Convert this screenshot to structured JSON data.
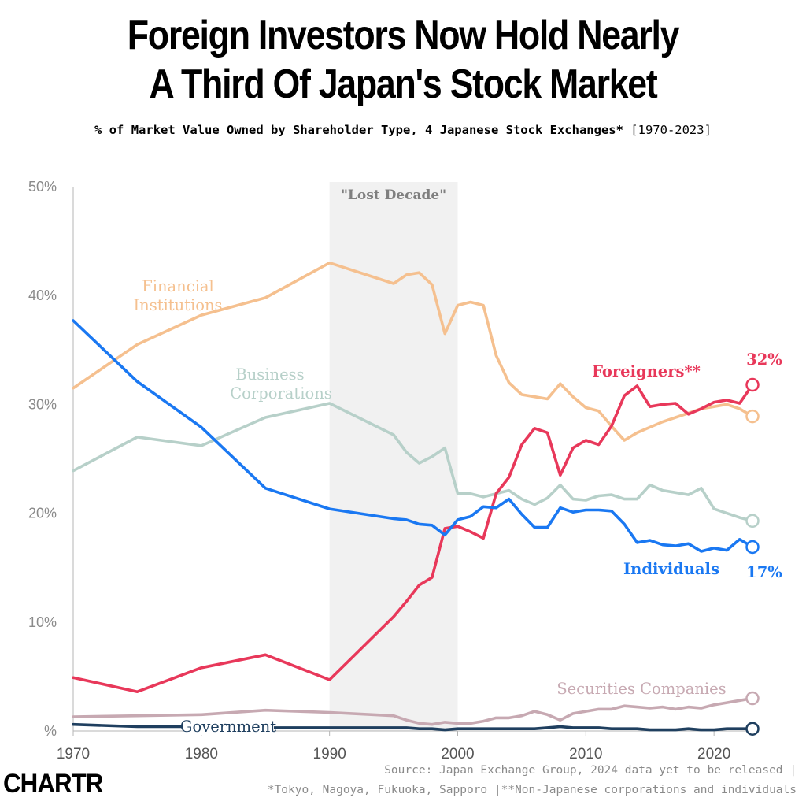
{
  "header": {
    "title_line1": "Foreign Investors Now Hold Nearly",
    "title_line2": "A Third Of Japan's Stock Market",
    "subtitle": "% of Market Value Owned by Shareholder Type, 4 Japanese Stock Exchanges*",
    "subtitle_range": "[1970-2023]"
  },
  "footer": {
    "source_line1": "Source: Japan Exchange Group, 2024 data yet to be released |",
    "source_line2": "*Tokyo, Nagoya, Fukuoka, Sapporo |**Non-Japanese corporations and individuals",
    "logo": "CHARTR"
  },
  "chart_data": {
    "type": "line",
    "xlim": [
      1970,
      2023
    ],
    "ylim": [
      0,
      50
    ],
    "x_ticks": [
      1970,
      1980,
      1990,
      2000,
      2010,
      2020
    ],
    "x_tick_labels": [
      "1970",
      "1980",
      "1990",
      "2000",
      "2010",
      "2020"
    ],
    "y_ticks": [
      0,
      10,
      20,
      30,
      40,
      50
    ],
    "y_tick_labels": [
      "%",
      "10%",
      "20%",
      "30%",
      "40%",
      "50%"
    ],
    "grid": false,
    "shaded_region": {
      "label": "\"Lost Decade\"",
      "x_start": 1990,
      "x_end": 2000,
      "color": "#f1f1f1"
    },
    "series": [
      {
        "name": "Financial Institutions",
        "label_line1": "Financial",
        "label_line2": "Institutions",
        "color": "#f5c08f",
        "x": [
          1970,
          1975,
          1980,
          1985,
          1990,
          1995,
          1996,
          1997,
          1998,
          1999,
          2000,
          2001,
          2002,
          2003,
          2004,
          2005,
          2006,
          2007,
          2008,
          2009,
          2010,
          2011,
          2012,
          2013,
          2014,
          2015,
          2016,
          2017,
          2018,
          2019,
          2020,
          2021,
          2022,
          2023
        ],
        "values": [
          31.5,
          35.5,
          38.2,
          39.8,
          43.0,
          41.1,
          41.9,
          42.1,
          41.0,
          36.5,
          39.1,
          39.4,
          39.1,
          34.5,
          32.0,
          30.9,
          30.7,
          30.5,
          31.9,
          30.7,
          29.7,
          29.4,
          28.0,
          26.7,
          27.4,
          27.9,
          28.4,
          28.8,
          29.2,
          29.6,
          29.8,
          30.0,
          29.6,
          28.9
        ]
      },
      {
        "name": "Business Corporations",
        "label_line1": "Business",
        "label_line2": "Corporations",
        "color": "#b7d0c9",
        "x": [
          1970,
          1975,
          1980,
          1985,
          1990,
          1995,
          1996,
          1997,
          1998,
          1999,
          2000,
          2001,
          2002,
          2003,
          2004,
          2005,
          2006,
          2007,
          2008,
          2009,
          2010,
          2011,
          2012,
          2013,
          2014,
          2015,
          2016,
          2017,
          2018,
          2019,
          2020,
          2021,
          2022,
          2023
        ],
        "values": [
          23.9,
          27.0,
          26.2,
          28.8,
          30.1,
          27.2,
          25.6,
          24.6,
          25.2,
          26.0,
          21.8,
          21.8,
          21.5,
          21.8,
          22.1,
          21.3,
          20.8,
          21.4,
          22.6,
          21.3,
          21.2,
          21.6,
          21.7,
          21.3,
          21.3,
          22.6,
          22.1,
          21.9,
          21.7,
          22.3,
          20.4,
          20.0,
          19.6,
          19.3
        ]
      },
      {
        "name": "Foreigners**",
        "label_line1": "Foreigners**",
        "label_line2": "",
        "end_label": "32%",
        "color": "#e8385a",
        "x": [
          1970,
          1975,
          1980,
          1985,
          1990,
          1995,
          1996,
          1997,
          1998,
          1999,
          2000,
          2001,
          2002,
          2003,
          2004,
          2005,
          2006,
          2007,
          2008,
          2009,
          2010,
          2011,
          2012,
          2013,
          2014,
          2015,
          2016,
          2017,
          2018,
          2019,
          2020,
          2021,
          2022,
          2023
        ],
        "values": [
          4.9,
          3.6,
          5.8,
          7.0,
          4.7,
          10.5,
          11.9,
          13.4,
          14.1,
          18.6,
          18.8,
          18.3,
          17.7,
          21.8,
          23.3,
          26.3,
          27.8,
          27.4,
          23.5,
          26.0,
          26.7,
          26.3,
          28.0,
          30.8,
          31.7,
          29.8,
          30.0,
          30.1,
          29.1,
          29.6,
          30.2,
          30.4,
          30.1,
          31.8
        ]
      },
      {
        "name": "Individuals",
        "label_line1": "Individuals",
        "label_line2": "",
        "end_label": "17%",
        "color": "#1a78f2",
        "x": [
          1970,
          1975,
          1980,
          1985,
          1990,
          1995,
          1996,
          1997,
          1998,
          1999,
          2000,
          2001,
          2002,
          2003,
          2004,
          2005,
          2006,
          2007,
          2008,
          2009,
          2010,
          2011,
          2012,
          2013,
          2014,
          2015,
          2016,
          2017,
          2018,
          2019,
          2020,
          2021,
          2022,
          2023
        ],
        "values": [
          37.7,
          32.1,
          27.9,
          22.3,
          20.4,
          19.5,
          19.4,
          19.0,
          18.9,
          18.0,
          19.4,
          19.7,
          20.6,
          20.5,
          21.3,
          19.9,
          18.7,
          18.7,
          20.5,
          20.1,
          20.3,
          20.3,
          20.2,
          19.0,
          17.3,
          17.5,
          17.1,
          17.0,
          17.2,
          16.5,
          16.8,
          16.6,
          17.6,
          16.9
        ]
      },
      {
        "name": "Securities Companies",
        "label_line1": "Securities Companies",
        "label_line2": "",
        "color": "#c7a9b2",
        "x": [
          1970,
          1975,
          1980,
          1985,
          1990,
          1995,
          1996,
          1997,
          1998,
          1999,
          2000,
          2001,
          2002,
          2003,
          2004,
          2005,
          2006,
          2007,
          2008,
          2009,
          2010,
          2011,
          2012,
          2013,
          2014,
          2015,
          2016,
          2017,
          2018,
          2019,
          2020,
          2021,
          2022,
          2023
        ],
        "values": [
          1.3,
          1.4,
          1.5,
          1.9,
          1.7,
          1.4,
          1.0,
          0.7,
          0.6,
          0.8,
          0.7,
          0.7,
          0.9,
          1.2,
          1.2,
          1.4,
          1.8,
          1.5,
          1.0,
          1.6,
          1.8,
          2.0,
          2.0,
          2.3,
          2.2,
          2.1,
          2.2,
          2.0,
          2.2,
          2.1,
          2.4,
          2.6,
          2.8,
          3.0
        ]
      },
      {
        "name": "Government",
        "label_line1": "Government",
        "label_line2": "",
        "color": "#1f3f5f",
        "x": [
          1970,
          1975,
          1980,
          1985,
          1990,
          1995,
          1996,
          1997,
          1998,
          1999,
          2000,
          2001,
          2002,
          2003,
          2004,
          2005,
          2006,
          2007,
          2008,
          2009,
          2010,
          2011,
          2012,
          2013,
          2014,
          2015,
          2016,
          2017,
          2018,
          2019,
          2020,
          2021,
          2022,
          2023
        ],
        "values": [
          0.6,
          0.4,
          0.4,
          0.3,
          0.3,
          0.3,
          0.3,
          0.2,
          0.2,
          0.1,
          0.2,
          0.2,
          0.2,
          0.2,
          0.2,
          0.2,
          0.2,
          0.3,
          0.4,
          0.3,
          0.3,
          0.3,
          0.2,
          0.2,
          0.2,
          0.1,
          0.1,
          0.1,
          0.2,
          0.1,
          0.1,
          0.2,
          0.2,
          0.2
        ]
      }
    ]
  }
}
